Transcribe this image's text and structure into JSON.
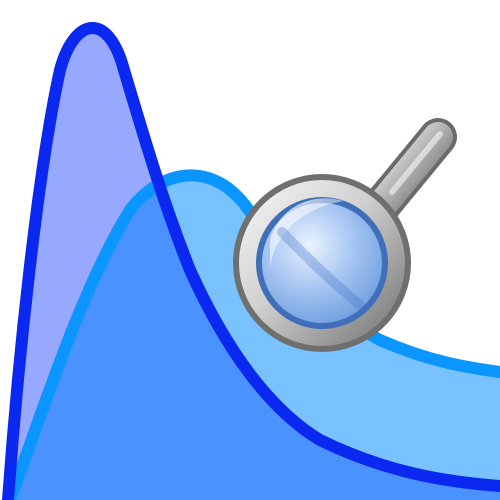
{
  "icon": {
    "semantic_name": "distribution-zoom-icon",
    "description_visible": "",
    "colors": {
      "background": "#ffffff",
      "curve_dark_stroke": "#0a28f0",
      "curve_dark_fill": "#96a8ff",
      "curve_light_stroke": "#0a95ff",
      "curve_light_fill": "#78c2ff",
      "overlap_fill": "#4a92ff",
      "lens_fill": "#8fb6ea",
      "lens_ring": "#3f6fb8",
      "metal_light": "#f4f4f4",
      "metal_dark": "#707070"
    }
  }
}
